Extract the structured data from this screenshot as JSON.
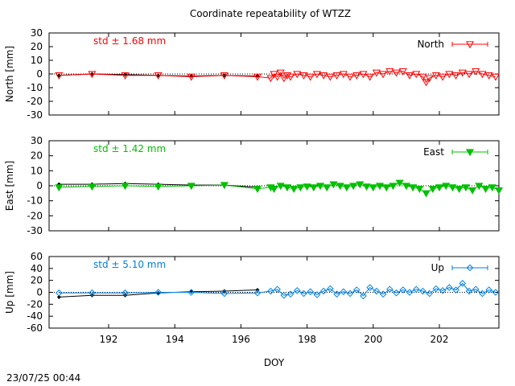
{
  "title": "Coordinate repeatability of WTZZ",
  "timestamp": "23/07/25 00:44",
  "colors": {
    "north": "#ff0000",
    "east": "#00c000",
    "up": "#0080e0",
    "black": "#000000"
  },
  "chart_data": [
    {
      "type": "line",
      "ylabel": "North [mm]",
      "xlabel": "",
      "xlim": [
        190.2,
        203.8
      ],
      "ylim": [
        -30,
        30
      ],
      "yticks": [
        30,
        20,
        10,
        0,
        -10,
        -20,
        -30
      ],
      "legend": "North",
      "legend_placement": "top-right",
      "annotation": "std ± 1.68 mm",
      "series": [
        {
          "name": "North",
          "x": [
            190.5,
            191.5,
            192.5,
            193.5,
            194.5,
            195.5,
            196.5,
            196.9,
            197.0,
            197.1,
            197.2,
            197.3,
            197.4,
            197.5,
            197.7,
            197.9,
            198.1,
            198.3,
            198.5,
            198.7,
            198.9,
            199.1,
            199.3,
            199.5,
            199.7,
            199.9,
            200.1,
            200.3,
            200.5,
            200.7,
            200.9,
            201.1,
            201.3,
            201.5,
            201.6,
            201.7,
            201.9,
            202.1,
            202.3,
            202.5,
            202.7,
            202.9,
            203.1,
            203.3,
            203.5,
            203.7
          ],
          "y": [
            -1,
            0,
            -1,
            -1,
            -2,
            -1,
            -2,
            -3,
            0,
            -2,
            1,
            -3,
            -1,
            -2,
            0,
            -1,
            -2,
            0,
            -1,
            -2,
            -1,
            0,
            -2,
            -1,
            0,
            -2,
            1,
            0,
            2,
            1,
            2,
            -1,
            0,
            -2,
            -6,
            -3,
            -1,
            -2,
            0,
            -1,
            1,
            0,
            2,
            0,
            -1,
            -2
          ]
        },
        {
          "name": "",
          "x": [
            190.5,
            191.5,
            192.5,
            193.5,
            194.5,
            195.5,
            196.5
          ],
          "y": [
            -1,
            0,
            -0.5,
            -1,
            -1.5,
            -1,
            -1.5
          ]
        }
      ]
    },
    {
      "type": "line",
      "ylabel": "East [mm]",
      "xlabel": "",
      "xlim": [
        190.2,
        203.8
      ],
      "ylim": [
        -30,
        30
      ],
      "yticks": [
        30,
        20,
        10,
        0,
        -10,
        -20,
        -30
      ],
      "legend": "East",
      "legend_placement": "top-right",
      "annotation": "std ± 1.42 mm",
      "series": [
        {
          "name": "East",
          "x": [
            190.5,
            191.5,
            192.5,
            193.5,
            194.5,
            195.5,
            196.5,
            196.9,
            197.0,
            197.2,
            197.4,
            197.6,
            197.8,
            198.0,
            198.2,
            198.4,
            198.6,
            198.8,
            199.0,
            199.2,
            199.4,
            199.6,
            199.8,
            200.0,
            200.2,
            200.4,
            200.6,
            200.8,
            201.0,
            201.2,
            201.4,
            201.6,
            201.8,
            202.0,
            202.2,
            202.4,
            202.6,
            202.8,
            203.0,
            203.2,
            203.4,
            203.6,
            203.8
          ],
          "y": [
            -1,
            -0.5,
            0,
            -0.5,
            0,
            0.5,
            -2,
            -1,
            -2,
            0,
            -1,
            -2,
            -1,
            -0.5,
            -1,
            0,
            -1,
            1,
            0,
            -1,
            0,
            1,
            -0.5,
            -1,
            0,
            -1,
            0,
            2,
            0,
            -1,
            -2,
            -5,
            -2,
            -1,
            0,
            -1,
            -2,
            -1,
            -3,
            0,
            -2,
            -1,
            -3
          ]
        },
        {
          "name": "",
          "x": [
            190.5,
            191.5,
            192.5,
            193.5,
            194.5,
            195.5,
            196.5
          ],
          "y": [
            1,
            1,
            1.5,
            1,
            0.5,
            0.5,
            -1
          ]
        }
      ]
    },
    {
      "type": "line",
      "ylabel": "Up [mm]",
      "xlabel": "DOY",
      "xlim": [
        190.2,
        203.8
      ],
      "ylim": [
        -60,
        60
      ],
      "yticks": [
        60,
        40,
        20,
        0,
        -20,
        -40,
        -60
      ],
      "xticks": [
        192,
        194,
        196,
        198,
        200,
        202
      ],
      "legend": "Up",
      "legend_placement": "top-right",
      "annotation": "std ± 5.10 mm",
      "series": [
        {
          "name": "Up",
          "x": [
            190.5,
            191.5,
            192.5,
            193.5,
            194.5,
            195.5,
            196.5,
            196.9,
            197.1,
            197.3,
            197.5,
            197.7,
            197.9,
            198.1,
            198.3,
            198.5,
            198.7,
            198.9,
            199.1,
            199.3,
            199.5,
            199.7,
            199.9,
            200.1,
            200.3,
            200.5,
            200.7,
            200.9,
            201.1,
            201.3,
            201.5,
            201.7,
            201.9,
            202.1,
            202.3,
            202.5,
            202.7,
            202.9,
            203.1,
            203.3,
            203.5,
            203.7
          ],
          "y": [
            -1,
            -1,
            -1,
            0,
            0,
            -2,
            -1,
            2,
            5,
            -5,
            -3,
            3,
            -2,
            1,
            -4,
            2,
            6,
            -3,
            1,
            -2,
            4,
            -6,
            8,
            2,
            -3,
            5,
            -1,
            4,
            0,
            5,
            2,
            -2,
            6,
            3,
            8,
            4,
            15,
            2,
            5,
            -2,
            4,
            0
          ]
        },
        {
          "name": "",
          "x": [
            190.5,
            191.5,
            192.5,
            193.5,
            194.5,
            195.5,
            196.5
          ],
          "y": [
            -8,
            -5,
            -5,
            -1,
            1,
            2,
            4
          ]
        }
      ]
    }
  ]
}
